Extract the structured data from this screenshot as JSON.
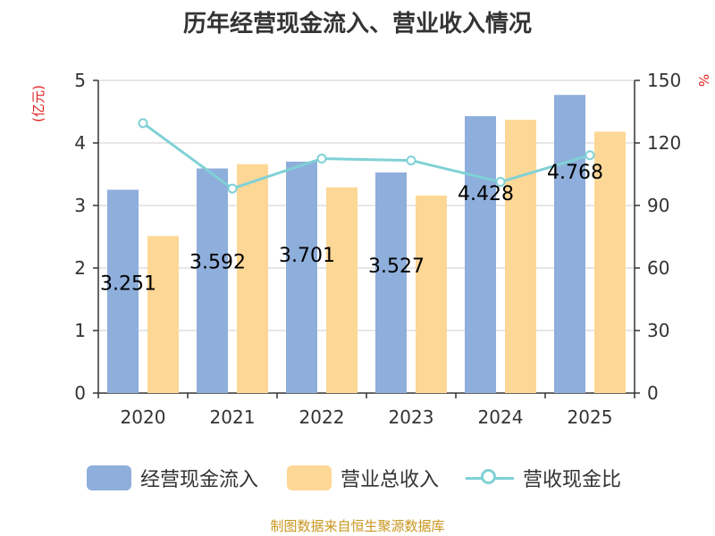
{
  "chart_data": {
    "type": "bar",
    "title": "历年经营现金流入、营业收入情况",
    "categories": [
      "2020",
      "2021",
      "2022",
      "2023",
      "2024",
      "2025"
    ],
    "y_left": {
      "label": "(亿元)",
      "ylim": [
        0,
        5
      ],
      "ticks": [
        "0",
        "1",
        "2",
        "3",
        "4",
        "5"
      ]
    },
    "y_right": {
      "label": "%",
      "ylim": [
        0,
        150
      ],
      "ticks": [
        "0",
        "30",
        "60",
        "90",
        "120",
        "150"
      ]
    },
    "series": [
      {
        "name": "经营现金流入",
        "type": "bar",
        "axis": "left",
        "color": "#8eaedb",
        "values": [
          3.251,
          3.592,
          3.701,
          3.527,
          4.428,
          4.768
        ],
        "labels": [
          "3.251",
          "3.592",
          "3.701",
          "3.527",
          "4.428",
          "4.768"
        ]
      },
      {
        "name": "营业总收入",
        "type": "bar",
        "axis": "left",
        "color": "#fdd796",
        "values": [
          2.51,
          3.66,
          3.29,
          3.16,
          4.37,
          4.18
        ]
      },
      {
        "name": "营收现金比",
        "type": "line",
        "axis": "right",
        "color": "#7fd1d6",
        "values": [
          129.5,
          98.1,
          112.5,
          111.6,
          101.3,
          114.1
        ]
      }
    ],
    "grid": true,
    "legend_position": "bottom"
  },
  "source": "制图数据来自恒生聚源数据库"
}
